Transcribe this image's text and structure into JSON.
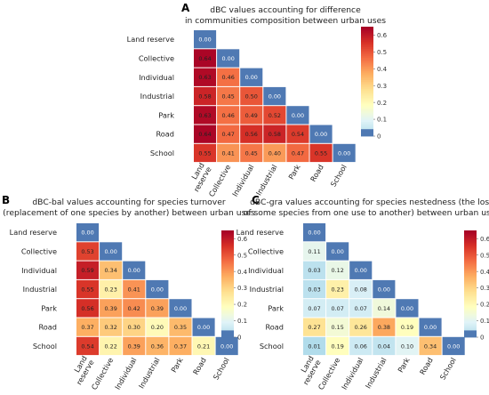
{
  "chart_data": [
    {
      "type": "heatmap",
      "panel_letter": "A",
      "title_lines": [
        "dBC values accounting for difference",
        "in communities composition between urban uses"
      ],
      "categories": [
        "Land reserve",
        "Collective",
        "Individual",
        "Industrial",
        "Park",
        "Road",
        "School"
      ],
      "x_tick_labels": [
        [
          "Land",
          "reserve"
        ],
        [
          "Collective"
        ],
        [
          "Individual"
        ],
        [
          "Industrial"
        ],
        [
          "Park"
        ],
        [
          "Road"
        ],
        [
          "School"
        ]
      ],
      "rows": [
        [
          0.0
        ],
        [
          0.64,
          0.0
        ],
        [
          0.63,
          0.46,
          0.0
        ],
        [
          0.58,
          0.45,
          0.5,
          0.0
        ],
        [
          0.63,
          0.46,
          0.49,
          0.52,
          0.0
        ],
        [
          0.64,
          0.47,
          0.56,
          0.58,
          0.54,
          0.0
        ],
        [
          0.55,
          0.41,
          0.45,
          0.4,
          0.47,
          0.55,
          0.0
        ]
      ],
      "colorbar_ticks": [
        "0",
        "0.1",
        "0.2",
        "0.3",
        "0.4",
        "0.5",
        "0.6"
      ],
      "value_range": [
        0,
        0.65
      ]
    },
    {
      "type": "heatmap",
      "panel_letter": "B",
      "title_lines": [
        "dBC-bal values accounting for species turnover",
        "(replacement of one species by another) between urban uses"
      ],
      "categories": [
        "Land reserve",
        "Collective",
        "Individual",
        "Industrial",
        "Park",
        "Road",
        "School"
      ],
      "x_tick_labels": [
        [
          "Land",
          "reserve"
        ],
        [
          "Collective"
        ],
        [
          "Individual"
        ],
        [
          "Industrial"
        ],
        [
          "Park"
        ],
        [
          "Road"
        ],
        [
          "School"
        ]
      ],
      "rows": [
        [
          0.0
        ],
        [
          0.53,
          0.0
        ],
        [
          0.59,
          0.34,
          0.0
        ],
        [
          0.55,
          0.23,
          0.41,
          0.0
        ],
        [
          0.56,
          0.39,
          0.42,
          0.39,
          0.0
        ],
        [
          0.37,
          0.32,
          0.3,
          0.2,
          0.35,
          0.0
        ],
        [
          0.54,
          0.22,
          0.39,
          0.36,
          0.37,
          0.21,
          0.0
        ]
      ],
      "colorbar_ticks": [
        "0",
        "0.1",
        "0.2",
        "0.3",
        "0.4",
        "0.5",
        "0.6"
      ],
      "value_range": [
        0,
        0.65
      ]
    },
    {
      "type": "heatmap",
      "panel_letter": "C",
      "title_lines": [
        "dBC-gra values accounting for species nestedness (the loss",
        "of some species from one use to another) between urban uses"
      ],
      "categories": [
        "Land reserve",
        "Collective",
        "Individual",
        "Industrial",
        "Park",
        "Road",
        "School"
      ],
      "x_tick_labels": [
        [
          "Land",
          "reserve"
        ],
        [
          "Collective"
        ],
        [
          "Individual"
        ],
        [
          "Industrial"
        ],
        [
          "Park"
        ],
        [
          "Road"
        ],
        [
          "School"
        ]
      ],
      "rows": [
        [
          0.0
        ],
        [
          0.11,
          0.0
        ],
        [
          0.03,
          0.12,
          0.0
        ],
        [
          0.03,
          0.23,
          0.08,
          0.0
        ],
        [
          0.07,
          0.07,
          0.07,
          0.14,
          0.0
        ],
        [
          0.27,
          0.15,
          0.26,
          0.38,
          0.19,
          0.0
        ],
        [
          0.01,
          0.19,
          0.06,
          0.04,
          0.1,
          0.34,
          0.0
        ]
      ],
      "colorbar_ticks": [
        "0",
        "0.1",
        "0.2",
        "0.3",
        "0.4",
        "0.5",
        "0.6"
      ],
      "value_range": [
        0,
        0.65
      ]
    }
  ]
}
